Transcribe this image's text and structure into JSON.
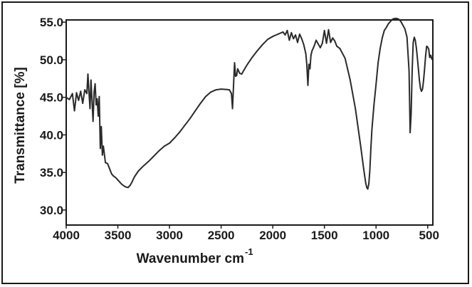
{
  "chart_data": {
    "type": "line",
    "title": "",
    "xlabel": "Wavenumber cm",
    "xlabel_superscript": "-1",
    "ylabel": "Transmittance [%]",
    "xlim": [
      4000,
      450
    ],
    "ylim": [
      28,
      55.3
    ],
    "x_reversed": true,
    "grid": false,
    "legend": "none",
    "line_color": "#2a2a2a",
    "x_ticks": [
      4000,
      3500,
      3000,
      2500,
      2000,
      1500,
      1000,
      500
    ],
    "x_tick_labels": [
      "4000",
      "3500",
      "3000",
      "2500",
      "2000",
      "1500",
      "1000",
      "500"
    ],
    "y_ticks": [
      30,
      35,
      40,
      45,
      50,
      55
    ],
    "y_tick_labels": [
      "30.0",
      "35.0",
      "40.0",
      "45.0",
      "50.0",
      "55.0"
    ],
    "series": [
      {
        "name": "",
        "x": [
          4000,
          3970,
          3940,
          3920,
          3900,
          3880,
          3860,
          3840,
          3820,
          3800,
          3790,
          3780,
          3770,
          3760,
          3740,
          3730,
          3720,
          3710,
          3700,
          3690,
          3680,
          3670,
          3660,
          3650,
          3640,
          3620,
          3600,
          3580,
          3560,
          3540,
          3520,
          3500,
          3480,
          3460,
          3440,
          3420,
          3400,
          3380,
          3360,
          3340,
          3300,
          3250,
          3200,
          3150,
          3100,
          3050,
          3000,
          2950,
          2900,
          2850,
          2800,
          2750,
          2700,
          2650,
          2600,
          2550,
          2500,
          2450,
          2420,
          2400,
          2390,
          2380,
          2370,
          2360,
          2350,
          2340,
          2320,
          2300,
          2280,
          2250,
          2200,
          2150,
          2100,
          2050,
          2000,
          1950,
          1900,
          1880,
          1860,
          1840,
          1820,
          1800,
          1780,
          1760,
          1740,
          1720,
          1700,
          1680,
          1670,
          1660,
          1650,
          1640,
          1630,
          1620,
          1600,
          1580,
          1560,
          1540,
          1520,
          1500,
          1480,
          1460,
          1440,
          1420,
          1400,
          1380,
          1350,
          1300,
          1250,
          1200,
          1150,
          1120,
          1100,
          1090,
          1080,
          1070,
          1060,
          1050,
          1040,
          1020,
          1000,
          980,
          960,
          940,
          920,
          900,
          880,
          860,
          840,
          820,
          800,
          780,
          760,
          740,
          720,
          700,
          680,
          670,
          660,
          650,
          640,
          630,
          620,
          610,
          600,
          590,
          580,
          570,
          560,
          550,
          540,
          530,
          520,
          510,
          500,
          490,
          480,
          470,
          460,
          450
        ],
        "y": [
          45,
          44.7,
          45.5,
          43.2,
          45.6,
          44.6,
          45.8,
          44.2,
          46,
          45.5,
          48.1,
          45.8,
          43.5,
          47.3,
          41.8,
          45.7,
          46.8,
          44,
          44.8,
          42.5,
          45.1,
          38.2,
          41.1,
          37.3,
          38.5,
          36.3,
          36.2,
          35.5,
          34.8,
          34.5,
          34.3,
          34,
          33.7,
          33.4,
          33.2,
          33.05,
          33,
          33.3,
          33.8,
          34.4,
          35.2,
          35.9,
          36.5,
          37.2,
          37.9,
          38.5,
          38.9,
          39.6,
          40.4,
          41.3,
          42.2,
          43.2,
          44.2,
          45.1,
          45.7,
          46,
          46.1,
          46.05,
          46,
          45.5,
          43.5,
          46.5,
          49.6,
          47.8,
          47.9,
          48.8,
          48.2,
          48.1,
          48.6,
          49.3,
          50.3,
          51.2,
          52,
          52.7,
          53.1,
          53.4,
          53.7,
          53.3,
          53.9,
          52.6,
          53.6,
          52.8,
          53.3,
          52.3,
          53.4,
          52.8,
          52,
          50.8,
          49.3,
          46.6,
          49.4,
          48.8,
          50.6,
          51.2,
          51.8,
          52.6,
          52.1,
          51.6,
          52.2,
          53.9,
          52.2,
          54,
          52.3,
          52.9,
          52.5,
          51.8,
          51.5,
          50.2,
          47.3,
          43.5,
          38.6,
          35.5,
          33.6,
          33,
          32.8,
          33.5,
          35.3,
          38.3,
          40.7,
          44,
          46.7,
          49.6,
          51.5,
          52.9,
          53.9,
          54.3,
          54.8,
          55.1,
          55.4,
          55.5,
          55.5,
          55.4,
          55.1,
          54.6,
          54.1,
          53,
          48.5,
          40.3,
          42.8,
          48.7,
          52.3,
          53,
          52.6,
          51.6,
          50.3,
          48.8,
          47.3,
          46.2,
          45.8,
          46.1,
          47.2,
          48.8,
          50.5,
          51.8,
          51.7,
          51.4,
          50.3,
          50.6,
          50.1,
          50.4
        ]
      }
    ]
  }
}
